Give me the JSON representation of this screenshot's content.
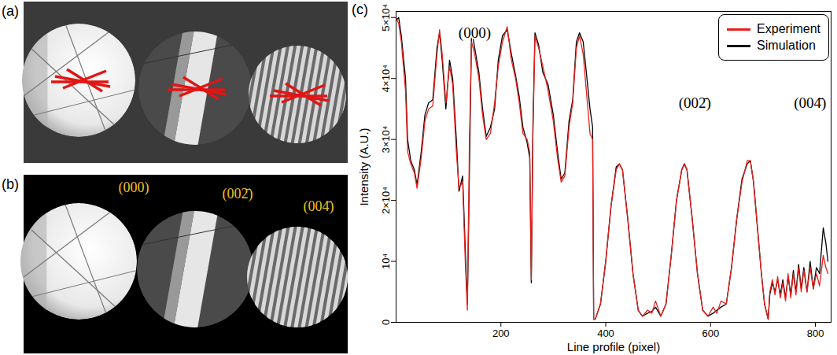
{
  "image_panels": [
    {
      "label": "(a)"
    },
    {
      "label": "(b)",
      "disk_labels": [
        "(000)",
        "(002̄)",
        "(004̄)"
      ]
    }
  ],
  "chart_data": {
    "type": "line",
    "panel_label": "(c)",
    "x_label": "Line profile (pixel)",
    "y_label": "Intensity (A.U.)",
    "xlim": [
      0,
      830
    ],
    "xticks": [
      200,
      400,
      600,
      800
    ],
    "ylim": [
      0,
      51000
    ],
    "yticks": [
      0,
      {
        "value": 10000,
        "label": "10⁴"
      },
      {
        "value": 20000,
        "label": "2×10⁴"
      },
      {
        "value": 30000,
        "label": "3×10⁴"
      },
      {
        "value": 40000,
        "label": "4×10⁴"
      },
      {
        "value": 50000,
        "label": "5×10⁴"
      }
    ],
    "grid": false,
    "legend": "upper right",
    "x": [
      0,
      5,
      10,
      18,
      22,
      28,
      35,
      40,
      48,
      55,
      62,
      70,
      78,
      83,
      88,
      95,
      102,
      108,
      115,
      120,
      127,
      132,
      136,
      140,
      144,
      150,
      158,
      165,
      172,
      180,
      188,
      195,
      203,
      212,
      220,
      228,
      235,
      242,
      250,
      255,
      258,
      261,
      265,
      272,
      280,
      290,
      300,
      308,
      315,
      322,
      330,
      337,
      344,
      350,
      357,
      363,
      370,
      375,
      377,
      380,
      390,
      400,
      410,
      420,
      426,
      432,
      442,
      452,
      462,
      470,
      480,
      488,
      495,
      505,
      515,
      525,
      535,
      545,
      550,
      555,
      565,
      575,
      585,
      595,
      605,
      612,
      620,
      630,
      640,
      650,
      660,
      670,
      676,
      682,
      690,
      697,
      703,
      710,
      713,
      718,
      723,
      728,
      733,
      738,
      743,
      748,
      753,
      758,
      763,
      768,
      773,
      778,
      784,
      790,
      796,
      802,
      808,
      815,
      820,
      824
    ],
    "series": [
      {
        "name": "Experiment",
        "color": "#e8201c",
        "values": [
          50000,
          49000,
          46000,
          38000,
          28000,
          26000,
          24500,
          22000,
          27000,
          33000,
          35000,
          35500,
          44000,
          48000,
          44000,
          36000,
          42000,
          39000,
          28000,
          22000,
          23000,
          10000,
          2000,
          30000,
          46000,
          44000,
          40000,
          34000,
          30000,
          31000,
          36000,
          42000,
          46000,
          48500,
          43000,
          40000,
          36000,
          31000,
          30000,
          28000,
          7000,
          30000,
          47000,
          45000,
          42000,
          38000,
          33000,
          27000,
          23000,
          24000,
          32000,
          36000,
          45000,
          47000,
          44000,
          38000,
          31000,
          30000,
          500,
          500,
          3000,
          10000,
          19000,
          25000,
          26000,
          25000,
          17000,
          8000,
          2000,
          1000,
          2000,
          1500,
          3500,
          1000,
          3000,
          11000,
          20000,
          25000,
          26000,
          25000,
          17000,
          8000,
          2000,
          1000,
          2500,
          1500,
          3500,
          3000,
          9000,
          17000,
          23000,
          26500,
          26500,
          23000,
          15000,
          8000,
          3000,
          500,
          5000,
          7000,
          4500,
          7500,
          4000,
          6500,
          3500,
          8000,
          4000,
          8000,
          4500,
          9000,
          5000,
          8500,
          5000,
          9000,
          5500,
          8000,
          6000,
          11000,
          9000,
          8000
        ]
      },
      {
        "name": "Simulation",
        "color": "#000000",
        "values": [
          49500,
          50000,
          47000,
          40000,
          30000,
          26500,
          25000,
          22500,
          28000,
          34000,
          36000,
          36500,
          45000,
          47500,
          43000,
          35000,
          43000,
          40000,
          30000,
          21500,
          24000,
          12000,
          3000,
          25000,
          48000,
          45000,
          41000,
          35000,
          30500,
          32000,
          35000,
          43000,
          47000,
          48000,
          44000,
          40500,
          37000,
          32000,
          29500,
          27000,
          6500,
          32000,
          47500,
          45500,
          41000,
          39000,
          34000,
          28000,
          23500,
          24500,
          33000,
          36500,
          46000,
          47500,
          46000,
          41000,
          35000,
          32000,
          500,
          500,
          3000,
          10000,
          19000,
          25500,
          26000,
          25000,
          17000,
          8000,
          2000,
          1000,
          1500,
          1800,
          2500,
          1000,
          3000,
          11000,
          20000,
          25000,
          26000,
          25000,
          17000,
          8000,
          2000,
          1000,
          1500,
          2000,
          2500,
          3000,
          9000,
          17000,
          23500,
          26000,
          26500,
          23000,
          15000,
          8000,
          3000,
          500,
          4500,
          6500,
          5000,
          7000,
          4500,
          7000,
          4000,
          7500,
          4500,
          8500,
          5000,
          9500,
          5500,
          9000,
          5000,
          10000,
          5500,
          9000,
          8000,
          15500,
          13000,
          10000
        ]
      }
    ],
    "annotations": [
      {
        "text": "(000)",
        "x": 150,
        "y": 47500
      },
      {
        "text": "(002̄)",
        "x": 570,
        "y": 36000
      },
      {
        "text": "(004̄)",
        "x": 790,
        "y": 36000
      }
    ]
  }
}
